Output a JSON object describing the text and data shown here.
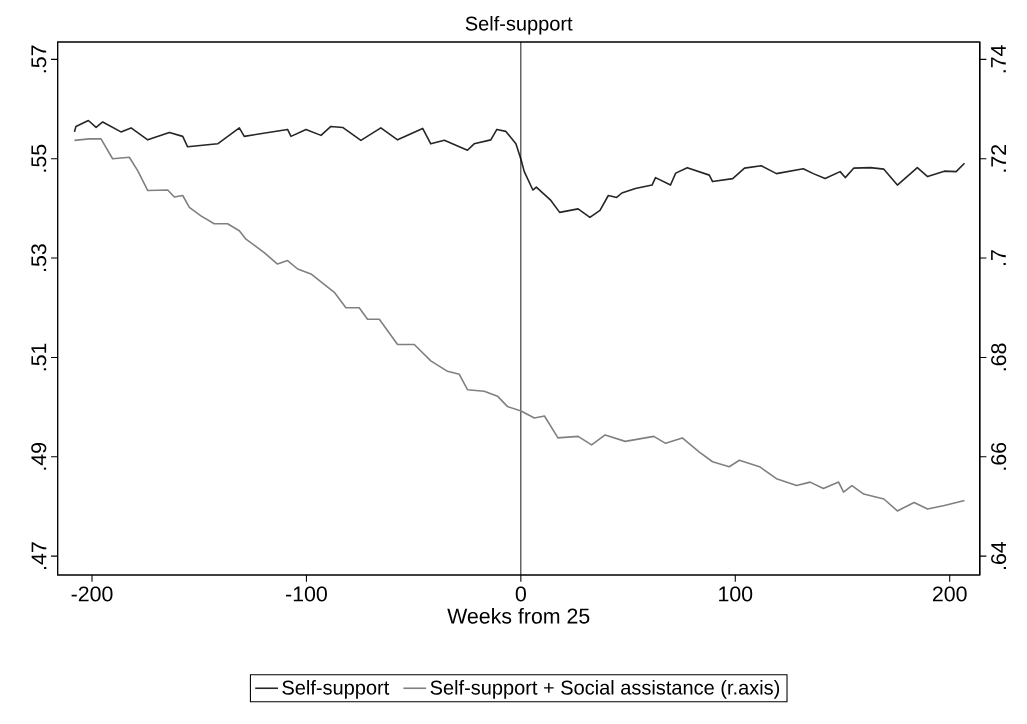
{
  "chart_data": {
    "type": "line",
    "title": "Self-support",
    "xlabel": "Weeks from 25",
    "xlim": [
      -216,
      214
    ],
    "xticks": [
      -200,
      -100,
      0,
      100,
      200
    ],
    "ylim": [
      0.4662,
      0.5735
    ],
    "yticks": [
      {
        "value": 0.47,
        "label": ".47"
      },
      {
        "value": 0.49,
        "label": ".49"
      },
      {
        "value": 0.51,
        "label": ".51"
      },
      {
        "value": 0.53,
        "label": ".53"
      },
      {
        "value": 0.55,
        "label": ".55"
      },
      {
        "value": 0.57,
        "label": ".57"
      }
    ],
    "y2lim": [
      0.6362,
      0.7435
    ],
    "y2ticks": [
      {
        "value": 0.64,
        "label": ".64"
      },
      {
        "value": 0.66,
        "label": ".66"
      },
      {
        "value": 0.68,
        "label": ".68"
      },
      {
        "value": 0.7,
        "label": ".7"
      },
      {
        "value": 0.72,
        "label": ".72"
      },
      {
        "value": 0.74,
        "label": ".74"
      }
    ],
    "legend": "bottom",
    "ref_lines": [
      {
        "axis": "x",
        "value": 0,
        "color": "#000000"
      }
    ],
    "series": [
      {
        "name": "Self-support",
        "color": "#262626",
        "x": [
          -208.2,
          -207.5,
          -201.7,
          -198.1,
          -195.0,
          -186.5,
          -181.8,
          -174.0,
          -163.9,
          -157.7,
          -155.4,
          -141.4,
          -131.3,
          -129.0,
          -108.8,
          -107.2,
          -100.2,
          -93.2,
          -88.6,
          -83.1,
          -74.6,
          -65.3,
          -57.5,
          -45.8,
          -42.0,
          -35.7,
          -24.9,
          -21.8,
          -14.0,
          -11.2,
          -7.0,
          -2.3,
          0.1,
          1.6,
          5.6,
          7.2,
          14.0,
          18.1,
          26.7,
          32.2,
          36.9,
          40.8,
          44.7,
          47.1,
          53.4,
          61.2,
          62.8,
          69.8,
          72.2,
          77.6,
          87.9,
          89.4,
          98.8,
          104.3,
          112.1,
          119.2,
          131.7,
          136.4,
          141.9,
          148.9,
          151.3,
          155.2,
          163.0,
          169.3,
          175.6,
          184.9,
          189.7,
          197.5,
          203.0,
          206.9
        ],
        "values": [
          0.5554,
          0.5565,
          0.5577,
          0.5563,
          0.5574,
          0.5554,
          0.5562,
          0.5538,
          0.5553,
          0.5545,
          0.5524,
          0.553,
          0.5562,
          0.5545,
          0.5559,
          0.5545,
          0.5559,
          0.5547,
          0.5565,
          0.5563,
          0.5537,
          0.5562,
          0.5538,
          0.5561,
          0.553,
          0.5537,
          0.5517,
          0.553,
          0.5538,
          0.5559,
          0.5555,
          0.553,
          0.5498,
          0.5474,
          0.5437,
          0.5443,
          0.5416,
          0.5392,
          0.5399,
          0.5382,
          0.5396,
          0.5426,
          0.5422,
          0.5431,
          0.544,
          0.5447,
          0.5462,
          0.5447,
          0.5471,
          0.5482,
          0.5467,
          0.5454,
          0.546,
          0.5481,
          0.5486,
          0.547,
          0.548,
          0.547,
          0.546,
          0.5474,
          0.5462,
          0.5481,
          0.5482,
          0.5479,
          0.5447,
          0.5482,
          0.5464,
          0.5475,
          0.5474,
          0.5491
        ]
      },
      {
        "name": "Self-support + Social assistance (r.axis)",
        "color": "#808080",
        "axis": "y2",
        "x": [
          -208.2,
          -201.2,
          -195.8,
          -190.4,
          -182.6,
          -178.7,
          -174.0,
          -164.7,
          -161.6,
          -157.7,
          -154.6,
          -149.2,
          -143.0,
          -136.8,
          -131.3,
          -128.2,
          -119.7,
          -113.5,
          -108.8,
          -104.1,
          -97.9,
          -87.0,
          -81.6,
          -75.4,
          -71.5,
          -66.0,
          -57.5,
          -49.7,
          -42.0,
          -34.2,
          -28.7,
          -24.9,
          -17.1,
          -10.9,
          -6.2,
          0.1,
          6.3,
          11.0,
          17.3,
          26.7,
          33.0,
          39.3,
          48.7,
          62.0,
          67.5,
          75.3,
          83.1,
          89.4,
          97.2,
          101.9,
          111.3,
          119.2,
          128.6,
          134.9,
          141.1,
          148.2,
          150.5,
          154.4,
          159.9,
          169.3,
          175.6,
          183.4,
          189.7,
          197.5,
          206.9
        ],
        "values": [
          0.7237,
          0.724,
          0.724,
          0.72,
          0.7203,
          0.7176,
          0.7136,
          0.7137,
          0.7123,
          0.7126,
          0.7102,
          0.7085,
          0.7069,
          0.7069,
          0.7055,
          0.7038,
          0.7011,
          0.6988,
          0.6995,
          0.6978,
          0.6968,
          0.6931,
          0.69,
          0.69,
          0.6877,
          0.6877,
          0.6826,
          0.6826,
          0.6793,
          0.6772,
          0.6766,
          0.6735,
          0.6732,
          0.6722,
          0.6701,
          0.6692,
          0.6678,
          0.6682,
          0.6638,
          0.6641,
          0.6624,
          0.6644,
          0.6631,
          0.6641,
          0.6627,
          0.6638,
          0.661,
          0.659,
          0.658,
          0.6593,
          0.658,
          0.6556,
          0.6542,
          0.6549,
          0.6536,
          0.6549,
          0.6529,
          0.6542,
          0.6525,
          0.6515,
          0.6491,
          0.6508,
          0.6495,
          0.6502,
          0.6512
        ]
      }
    ]
  }
}
